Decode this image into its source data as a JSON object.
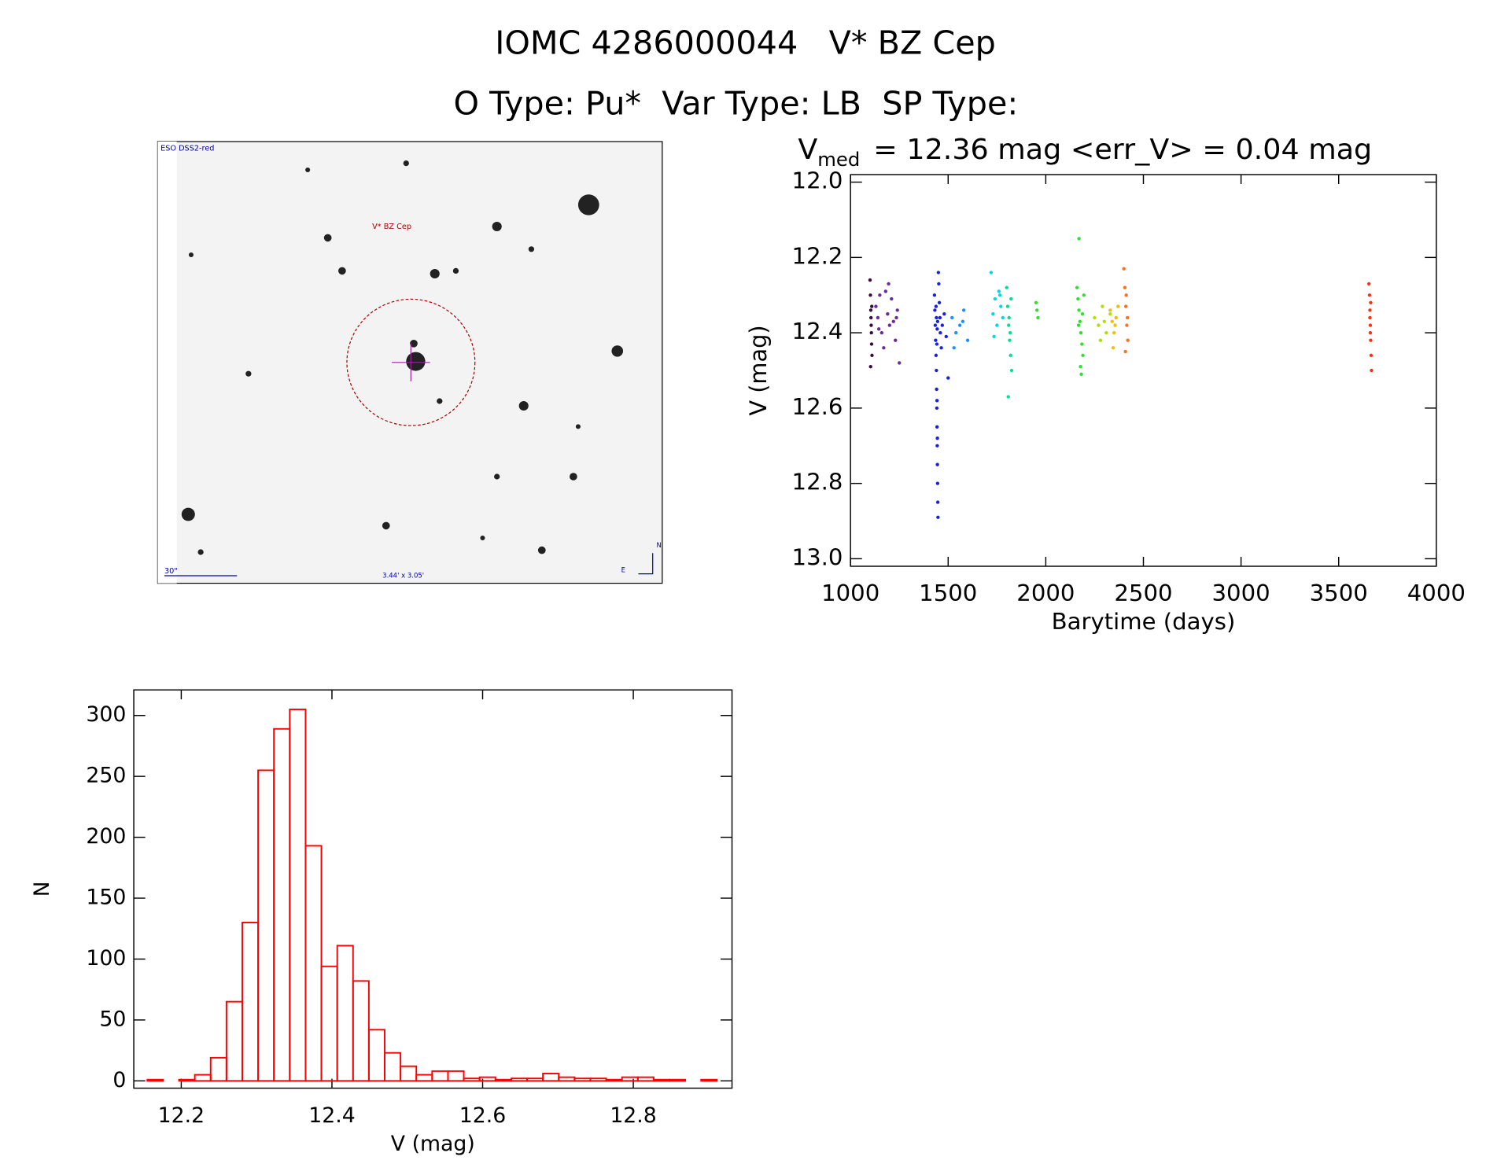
{
  "title": "IOMC 4286000044   V* BZ Cep",
  "subtitle": "O Type: Pu*  Var Type: LB  SP Type:",
  "image": {
    "survey": "ESO DSS2-red",
    "target": "V* BZ Cep",
    "scale": "30\"",
    "size": "3.44' x 3.05'",
    "north": "N",
    "east": "E"
  },
  "chart_data": [
    {
      "type": "scatter",
      "title": {
        "symbol": "V",
        "subscript": "med",
        "text": "= 12.36 mag <err_V> = 0.04 mag"
      },
      "x_label": "Barytime (days)",
      "y_label": "V (mag)",
      "xlim": [
        1000,
        4000
      ],
      "xticks": [
        1000,
        1500,
        2000,
        2500,
        3000,
        3500,
        4000
      ],
      "ylim": [
        11.98,
        13.02
      ],
      "y_inverted": true,
      "yticks": [
        {
          "value": 12.0,
          "label": "12.0"
        },
        12.2,
        12.4,
        12.6,
        12.8,
        {
          "value": 13.0,
          "label": "13.0"
        }
      ],
      "series": [
        {
          "color": "#3a0a3a",
          "x": [
            1100,
            1102,
            1104,
            1105,
            1106,
            1107,
            1108,
            1110,
            1103,
            1109
          ],
          "values": [
            12.26,
            12.3,
            12.34,
            12.36,
            12.38,
            12.4,
            12.43,
            12.46,
            12.49,
            12.33
          ]
        },
        {
          "color": "#6a2a9a",
          "x": [
            1130,
            1140,
            1150,
            1160,
            1170,
            1180,
            1190,
            1200,
            1210,
            1220,
            1230,
            1240,
            1250,
            1145,
            1195,
            1235
          ],
          "values": [
            12.33,
            12.36,
            12.3,
            12.4,
            12.44,
            12.29,
            12.35,
            12.38,
            12.31,
            12.37,
            12.42,
            12.34,
            12.48,
            12.39,
            12.27,
            12.36
          ]
        },
        {
          "color": "#1a20e0",
          "x": [
            1430,
            1432,
            1434,
            1436,
            1438,
            1440,
            1441,
            1442,
            1443,
            1444,
            1445,
            1446,
            1447,
            1448,
            1450,
            1452,
            1455,
            1458,
            1460,
            1465,
            1470,
            1480,
            1490,
            1500,
            1440,
            1444,
            1446,
            1442,
            1438,
            1443,
            1445
          ],
          "values": [
            12.3,
            12.34,
            12.38,
            12.42,
            12.46,
            12.5,
            12.55,
            12.6,
            12.65,
            12.7,
            12.75,
            12.8,
            12.85,
            12.89,
            12.24,
            12.27,
            12.32,
            12.36,
            12.4,
            12.44,
            12.38,
            12.35,
            12.41,
            12.52,
            12.36,
            12.39,
            12.37,
            12.43,
            12.33,
            12.58,
            12.68
          ]
        },
        {
          "color": "#1e8fff",
          "x": [
            1520,
            1540,
            1560,
            1580,
            1600,
            1530,
            1575
          ],
          "values": [
            12.36,
            12.4,
            12.38,
            12.34,
            12.42,
            12.44,
            12.37
          ]
        },
        {
          "color": "#00d8e8",
          "x": [
            1720,
            1730,
            1740,
            1750,
            1760,
            1770,
            1780,
            1735,
            1765
          ],
          "values": [
            12.24,
            12.35,
            12.31,
            12.38,
            12.29,
            12.33,
            12.36,
            12.41,
            12.3
          ]
        },
        {
          "color": "#00e090",
          "x": [
            1800,
            1805,
            1810,
            1815,
            1820,
            1825,
            1808,
            1812,
            1818,
            1822
          ],
          "values": [
            12.28,
            12.33,
            12.38,
            12.42,
            12.46,
            12.5,
            12.57,
            12.36,
            12.4,
            12.31
          ]
        },
        {
          "color": "#30e030",
          "x": [
            1950,
            1955,
            1960,
            2160,
            2165,
            2170,
            2175,
            2180,
            2185,
            2190,
            2195,
            2170,
            2178,
            2182,
            2168,
            2188
          ],
          "values": [
            12.32,
            12.34,
            12.36,
            12.28,
            12.31,
            12.34,
            12.37,
            12.4,
            12.43,
            12.46,
            12.3,
            12.15,
            12.49,
            12.51,
            12.38,
            12.35
          ]
        },
        {
          "color": "#b0e000",
          "x": [
            2250,
            2270,
            2290,
            2310,
            2330,
            2280,
            2300
          ],
          "values": [
            12.36,
            12.38,
            12.33,
            12.4,
            12.35,
            12.42,
            12.37
          ]
        },
        {
          "color": "#f0c000",
          "x": [
            2330,
            2340,
            2350,
            2360,
            2370,
            2345,
            2355
          ],
          "values": [
            12.34,
            12.37,
            12.4,
            12.36,
            12.33,
            12.44,
            12.38
          ]
        },
        {
          "color": "#ff7020",
          "x": [
            2400,
            2405,
            2410,
            2415,
            2420,
            2408,
            2412,
            2418
          ],
          "values": [
            12.23,
            12.28,
            12.33,
            12.38,
            12.42,
            12.45,
            12.3,
            12.36
          ]
        },
        {
          "color": "#ff3010",
          "x": [
            3655,
            3658,
            3660,
            3662,
            3664,
            3666,
            3668,
            3660,
            3662,
            3664
          ],
          "values": [
            12.27,
            12.3,
            12.34,
            12.38,
            12.42,
            12.46,
            12.5,
            12.36,
            12.4,
            12.32
          ]
        }
      ]
    },
    {
      "type": "histogram",
      "color": "#ff0000",
      "x_label": "V (mag)",
      "y_label": "N",
      "xlim": [
        12.137,
        12.931
      ],
      "xticks": [
        12.2,
        12.4,
        12.6,
        12.8
      ],
      "ylim": [
        -6,
        321
      ],
      "yticks": [
        0,
        50,
        100,
        150,
        200,
        250,
        300
      ],
      "bins": [
        12.155,
        12.176,
        12.197,
        12.218,
        12.239,
        12.26,
        12.281,
        12.302,
        12.323,
        12.344,
        12.365,
        12.386,
        12.407,
        12.428,
        12.449,
        12.47,
        12.491,
        12.512,
        12.533,
        12.554,
        12.575,
        12.596,
        12.617,
        12.638,
        12.659,
        12.68,
        12.701,
        12.722,
        12.743,
        12.764,
        12.785,
        12.806,
        12.827,
        12.848,
        12.869,
        12.89,
        12.911
      ],
      "values": [
        1,
        0,
        1,
        5,
        19,
        65,
        130,
        255,
        289,
        305,
        193,
        94,
        111,
        82,
        42,
        23,
        12,
        5,
        8,
        8,
        2,
        3,
        1,
        2,
        2,
        6,
        3,
        2,
        2,
        1,
        3,
        3,
        1,
        1,
        0,
        1
      ]
    }
  ]
}
